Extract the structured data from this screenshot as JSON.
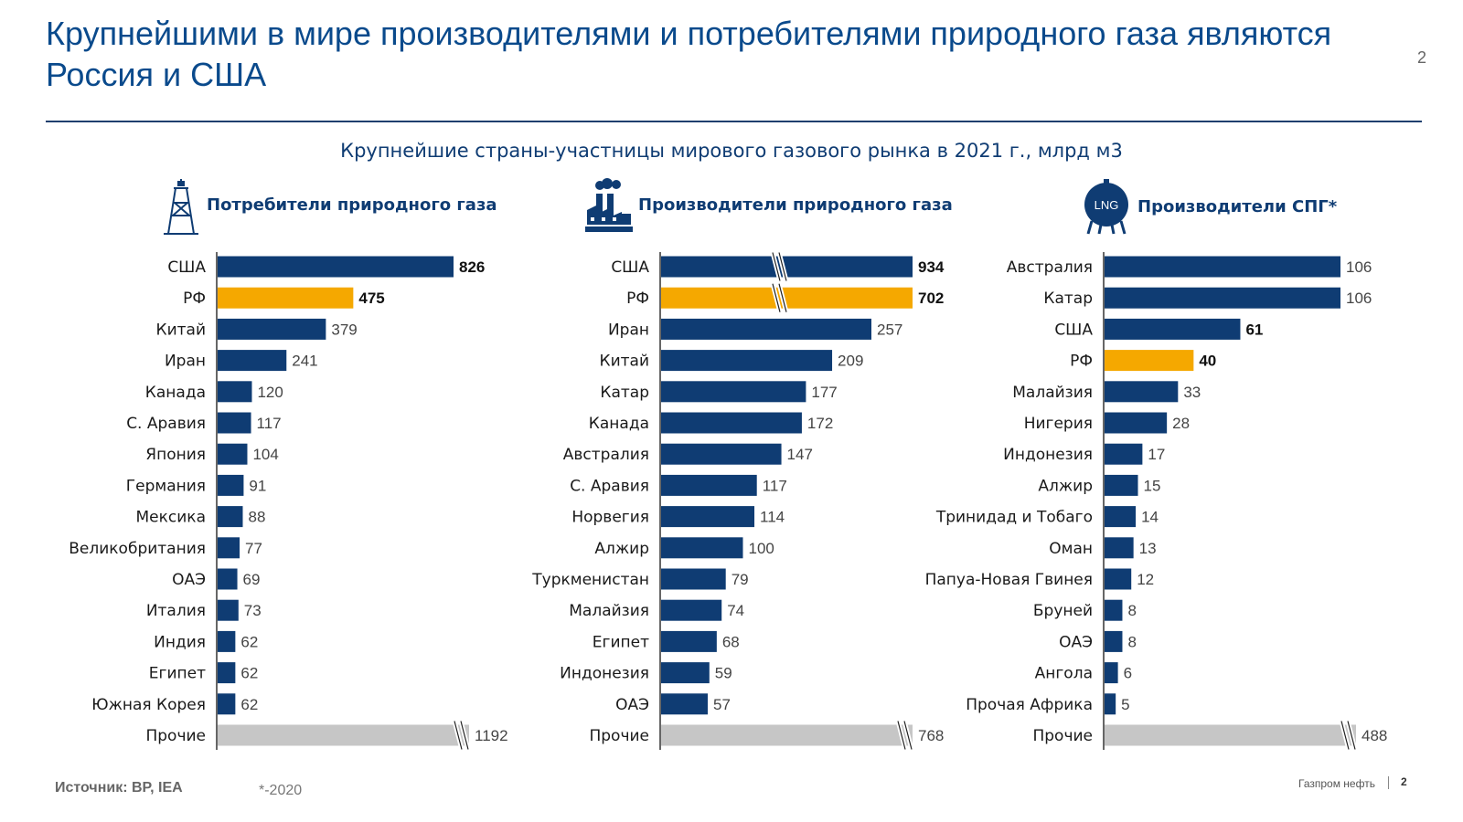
{
  "slide": {
    "title": "Крупнейшими в мире производителями и потребителями природного газа являются Россия и США",
    "page_number": "2"
  },
  "subtitle": "Крупнейшие страны-участницы мирового газового рынка в 2021 г., млрд м3",
  "panels": [
    {
      "heading": "Потребители природного газа",
      "icon": "gas-rig-icon"
    },
    {
      "heading": "Производители природного газа",
      "icon": "factory-icon"
    },
    {
      "heading": "Производители СПГ*",
      "icon": "lng-tank-icon",
      "icon_text": "LNG"
    }
  ],
  "colors": {
    "default": "#0f3c73",
    "highlight": "#f5a800",
    "other": "#c6c6c6"
  },
  "chart_data": [
    {
      "type": "bar",
      "orientation": "horizontal",
      "title": "Потребители природного газа",
      "categories": [
        "США",
        "РФ",
        "Китай",
        "Иран",
        "Канада",
        "С. Аравия",
        "Япония",
        "Германия",
        "Мексика",
        "Великобритания",
        "ОАЭ",
        "Италия",
        "Индия",
        "Египет",
        "Южная Корея",
        "Прочие"
      ],
      "values": [
        826,
        475,
        379,
        241,
        120,
        117,
        104,
        91,
        88,
        77,
        69,
        73,
        62,
        62,
        62,
        1192
      ],
      "value_labels": [
        "826",
        "475",
        "379",
        "241",
        "120",
        "117",
        "104",
        "91",
        "88",
        "77",
        "69",
        "73",
        "62",
        "62",
        "62",
        "1192"
      ],
      "bold_labels": [
        "США",
        "РФ"
      ],
      "highlight": [
        "РФ"
      ],
      "other_category": "Прочие",
      "axis_break": [
        "Прочие"
      ]
    },
    {
      "type": "bar",
      "orientation": "horizontal",
      "title": "Производители природного газа",
      "categories": [
        "США",
        "РФ",
        "Иран",
        "Китай",
        "Катар",
        "Канада",
        "Австралия",
        "С. Аравия",
        "Норвегия",
        "Алжир",
        "Туркменистан",
        "Малайзия",
        "Египет",
        "Индонезия",
        "ОАЭ",
        "Прочие"
      ],
      "values": [
        934,
        702,
        257,
        209,
        177,
        172,
        147,
        117,
        114,
        100,
        79,
        74,
        68,
        59,
        57,
        768
      ],
      "value_labels": [
        "934",
        "702",
        "257",
        "209",
        "177",
        "172",
        "147",
        "117",
        "114",
        "100",
        "79",
        "74",
        "68",
        "59",
        "57",
        "768"
      ],
      "bold_labels": [
        "США",
        "РФ"
      ],
      "highlight": [
        "РФ"
      ],
      "other_category": "Прочие",
      "axis_break": [
        "США",
        "РФ",
        "Прочие"
      ]
    },
    {
      "type": "bar",
      "orientation": "horizontal",
      "title": "Производители СПГ*",
      "categories": [
        "Австралия",
        "Катар",
        "США",
        "РФ",
        "Малайзия",
        "Нигерия",
        "Индонезия",
        "Алжир",
        "Тринидад и Тобаго",
        "Оман",
        "Папуа-Новая Гвинея",
        "Бруней",
        "ОАЭ",
        "Ангола",
        "Прочая Африка",
        "Прочие"
      ],
      "values": [
        106,
        106,
        61,
        40,
        33,
        28,
        17,
        15,
        14,
        13,
        12,
        8,
        8,
        6,
        5,
        488
      ],
      "value_labels": [
        "106",
        "106",
        "61",
        "40",
        "33",
        "28",
        "17",
        "15",
        "14",
        "13",
        "12",
        "8",
        "8",
        "6",
        "5",
        "488"
      ],
      "bold_labels": [
        "США",
        "РФ"
      ],
      "highlight": [
        "РФ"
      ],
      "other_category": "Прочие",
      "axis_break": [
        "Прочие"
      ]
    }
  ],
  "footer": {
    "source": "Источник: BP, IEA",
    "note": "*-2020",
    "brand": "Газпром нефть",
    "page": "2"
  }
}
